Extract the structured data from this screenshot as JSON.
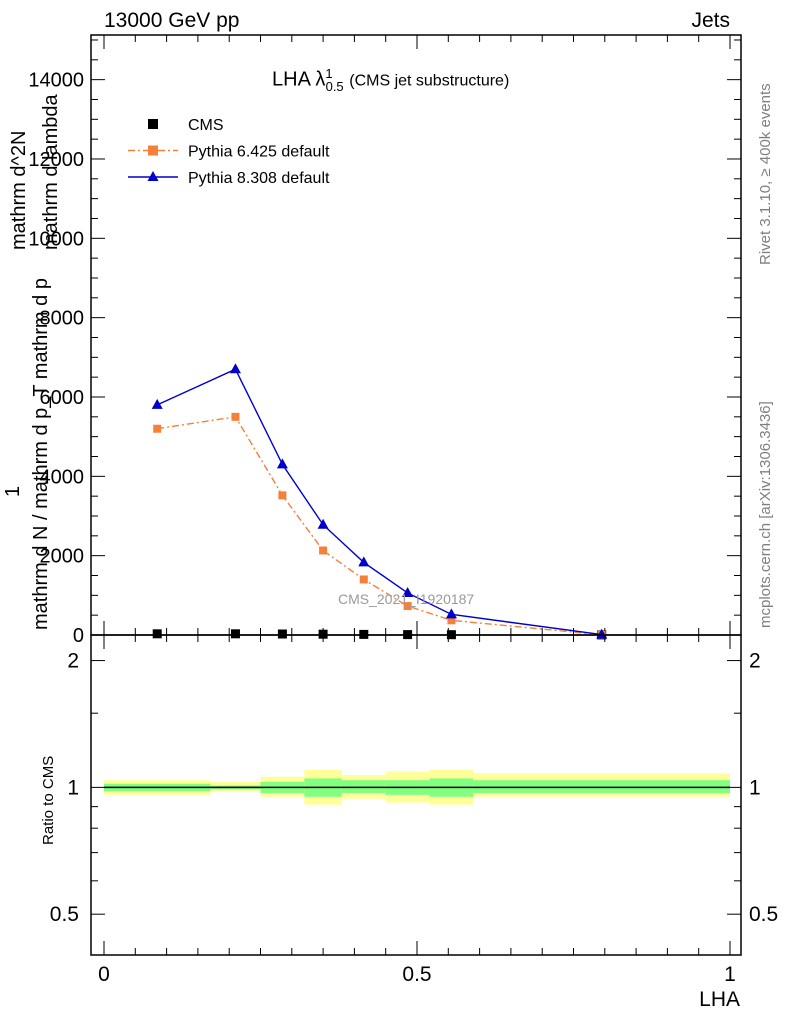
{
  "header": {
    "left": "13000 GeV pp",
    "right": "Jets"
  },
  "title": {
    "main": "LHA λ",
    "sup": "1",
    "sub": "0.5",
    "suffix": "(CMS jet substructure)"
  },
  "side_labels": {
    "rivet": "Rivet 3.1.10, ≥ 400k events",
    "mcplots": "mcplots.cern.ch [arXiv:1306.3436]"
  },
  "watermark": "CMS_2021_I1920187",
  "y_axis_label": {
    "top": "mathrm d^2N",
    "numerator_one": "1",
    "denominator": "mathrm d N / mathrm d p_T mathrm d p",
    "denominator2": "mathrm d lambda"
  },
  "ratio_ylabel": "Ratio to CMS",
  "x_axis_label": "LHA",
  "legend": [
    {
      "label": "CMS",
      "color": "#000000",
      "marker": "square"
    },
    {
      "label": "Pythia 6.425 default",
      "color": "#f5803a",
      "marker": "square"
    },
    {
      "label": "Pythia 8.308 default",
      "color": "#0000cc",
      "marker": "triangle"
    }
  ],
  "chart_data": [
    {
      "type": "line",
      "panel": "main",
      "xlim": [
        0,
        1
      ],
      "ylim": [
        0,
        15000
      ],
      "y_ticks": [
        0,
        2000,
        4000,
        6000,
        8000,
        10000,
        12000,
        14000
      ],
      "x": [
        0.085,
        0.21,
        0.285,
        0.35,
        0.415,
        0.485,
        0.555,
        0.795
      ],
      "series": [
        {
          "name": "CMS",
          "color": "#000000",
          "values": [
            30,
            30,
            25,
            20,
            15,
            10,
            8,
            2
          ]
        },
        {
          "name": "Pythia 6.425 default",
          "color": "#f5803a",
          "values": [
            5200,
            5500,
            3520,
            2130,
            1400,
            730,
            370,
            5
          ]
        },
        {
          "name": "Pythia 8.308 default",
          "color": "#0000cc",
          "values": [
            5800,
            6700,
            4300,
            2780,
            1830,
            1060,
            520,
            10
          ]
        }
      ]
    },
    {
      "type": "area",
      "panel": "ratio",
      "xlim": [
        0,
        1
      ],
      "ylim": [
        0.4,
        2.3
      ],
      "y_scale": "log",
      "y_ticks": [
        0.5,
        1,
        2
      ],
      "x_ticks": [
        0,
        0.5,
        1
      ],
      "bins": [
        0,
        0.17,
        0.25,
        0.32,
        0.38,
        0.45,
        0.52,
        0.59,
        1.0
      ],
      "band_outer": {
        "color": "#ffff99",
        "low": [
          0.96,
          0.98,
          0.95,
          0.91,
          0.94,
          0.92,
          0.91,
          0.95
        ],
        "high": [
          1.04,
          1.03,
          1.06,
          1.1,
          1.07,
          1.09,
          1.1,
          1.08
        ]
      },
      "band_inner": {
        "color": "#80ff80",
        "low": [
          0.98,
          0.99,
          0.97,
          0.95,
          0.97,
          0.96,
          0.95,
          0.97
        ],
        "high": [
          1.02,
          1.01,
          1.03,
          1.05,
          1.04,
          1.04,
          1.05,
          1.04
        ]
      },
      "reference": 1
    }
  ]
}
